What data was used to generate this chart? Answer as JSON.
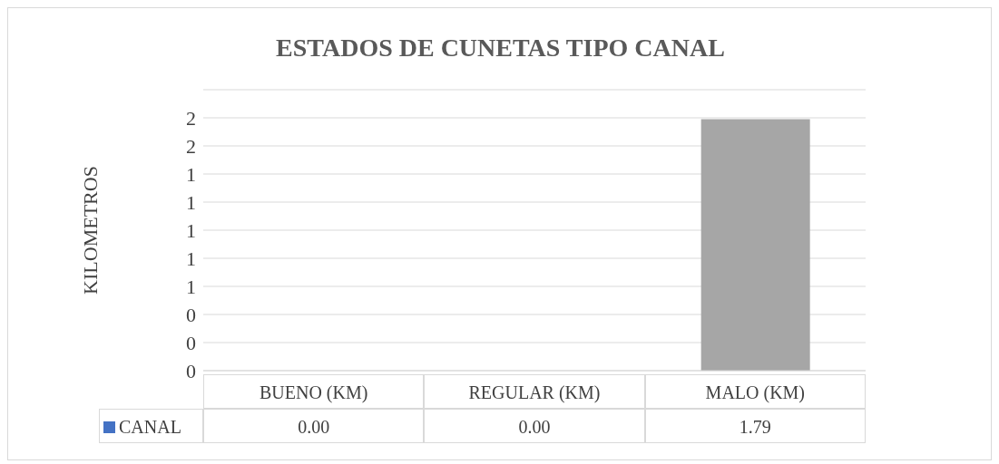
{
  "chart_data": {
    "type": "bar",
    "title": "ESTADOS DE CUNETAS TIPO CANAL",
    "ylabel": "KILOMETROS",
    "categories": [
      "BUENO (KM)",
      "REGULAR (KM)",
      "MALO (KM)"
    ],
    "series": [
      {
        "name": "CANAL",
        "color": "#4472c4",
        "colors": [
          "#0f1f3d",
          "#4a230c",
          "#a6a6a6"
        ],
        "values": [
          0,
          0,
          1.79
        ],
        "value_labels": [
          "0.00",
          "0.00",
          "1.79"
        ]
      }
    ],
    "ylim": [
      0,
      2
    ],
    "yticks": [
      {
        "value": 0,
        "label": "0"
      },
      {
        "value": 0.2,
        "label": "0"
      },
      {
        "value": 0.4,
        "label": "0"
      },
      {
        "value": 0.6,
        "label": "1"
      },
      {
        "value": 0.8,
        "label": "1"
      },
      {
        "value": 1,
        "label": "1"
      },
      {
        "value": 1.2,
        "label": "1"
      },
      {
        "value": 1.4,
        "label": "1"
      },
      {
        "value": 1.6,
        "label": "2"
      },
      {
        "value": 1.8,
        "label": "2"
      }
    ],
    "grid": "y",
    "legend": "bottom"
  }
}
